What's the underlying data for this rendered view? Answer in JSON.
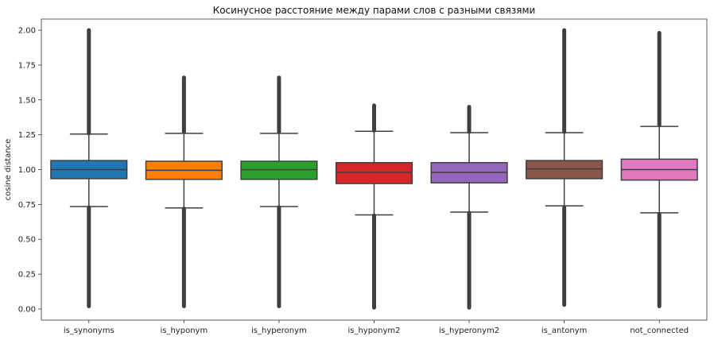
{
  "chart_data": {
    "type": "box",
    "title": "Косинусное расстояние между парами слов с разными связями",
    "xlabel": "",
    "ylabel": "cosine distance",
    "ylim": [
      -0.08,
      2.08
    ],
    "yticks": [
      "0.00",
      "0.25",
      "0.50",
      "0.75",
      "1.00",
      "1.25",
      "1.50",
      "1.75",
      "2.00"
    ],
    "grid": false,
    "categories": [
      "is_synonyms",
      "is_hyponym",
      "is_hyperonym",
      "is_hyponym2",
      "is_hyperonym2",
      "is_antonym",
      "not_connected"
    ],
    "series": [
      {
        "color": "#1f77b4",
        "whislo": 0.735,
        "q1": 0.935,
        "median": 1.0,
        "q3": 1.065,
        "whishi": 1.255,
        "flier_low": [
          0.02,
          0.73
        ],
        "flier_high": [
          1.26,
          2.0
        ]
      },
      {
        "color": "#ff7f0e",
        "whislo": 0.725,
        "q1": 0.93,
        "median": 0.995,
        "q3": 1.06,
        "whishi": 1.26,
        "flier_low": [
          0.02,
          0.72
        ],
        "flier_high": [
          1.27,
          1.66
        ]
      },
      {
        "color": "#2ca02c",
        "whislo": 0.735,
        "q1": 0.93,
        "median": 1.0,
        "q3": 1.06,
        "whishi": 1.26,
        "flier_low": [
          0.02,
          0.73
        ],
        "flier_high": [
          1.27,
          1.66
        ]
      },
      {
        "color": "#d62728",
        "whislo": 0.675,
        "q1": 0.9,
        "median": 0.98,
        "q3": 1.05,
        "whishi": 1.275,
        "flier_low": [
          0.01,
          0.67
        ],
        "flier_high": [
          1.28,
          1.46
        ]
      },
      {
        "color": "#9467bd",
        "whislo": 0.695,
        "q1": 0.905,
        "median": 0.98,
        "q3": 1.05,
        "whishi": 1.265,
        "flier_low": [
          0.01,
          0.69
        ],
        "flier_high": [
          1.27,
          1.45
        ]
      },
      {
        "color": "#8c564b",
        "whislo": 0.74,
        "q1": 0.935,
        "median": 1.005,
        "q3": 1.065,
        "whishi": 1.265,
        "flier_low": [
          0.03,
          0.73
        ],
        "flier_high": [
          1.27,
          2.0
        ]
      },
      {
        "color": "#e377c2",
        "whislo": 0.69,
        "q1": 0.925,
        "median": 1.0,
        "q3": 1.075,
        "whishi": 1.31,
        "flier_low": [
          0.02,
          0.68
        ],
        "flier_high": [
          1.32,
          1.98
        ]
      }
    ]
  }
}
